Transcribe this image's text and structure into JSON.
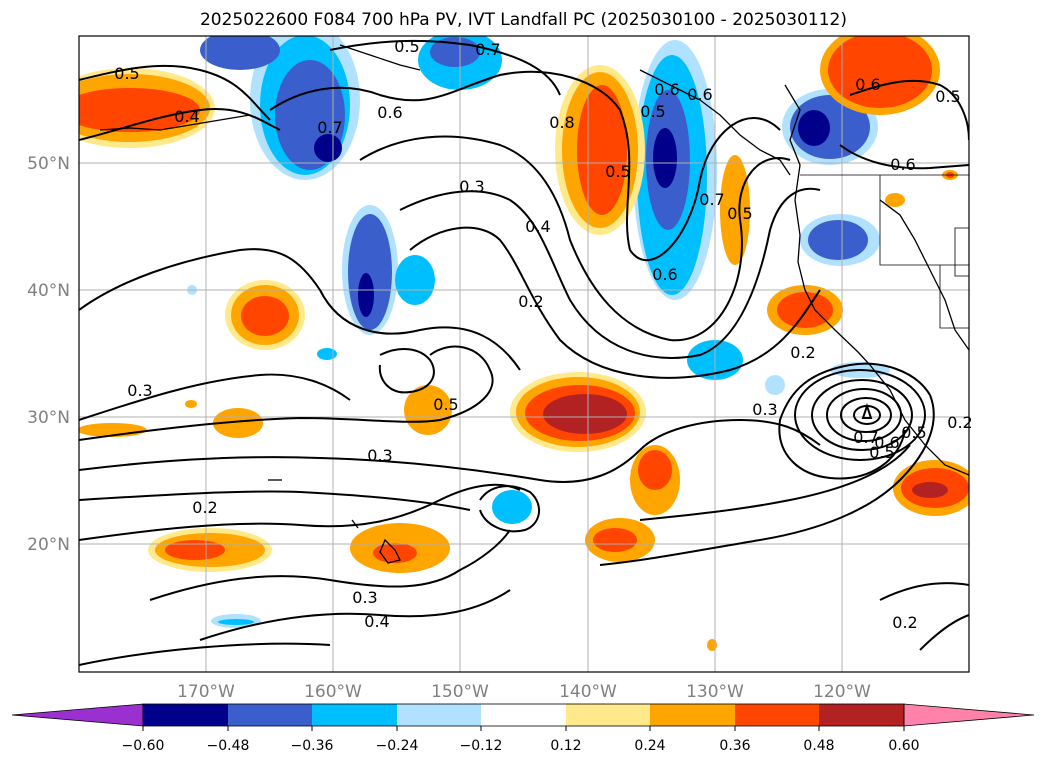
{
  "title": "2025022600 F084 700 hPa PV, IVT Landfall PC (2025030100 - 2025030112)",
  "map": {
    "lon_range": [
      -180,
      -110
    ],
    "lat_range": [
      10,
      60
    ],
    "lat_ticks": [
      "20°N",
      "30°N",
      "40°N",
      "50°N"
    ],
    "lon_ticks": [
      "170°W",
      "160°W",
      "150°W",
      "140°W",
      "130°W",
      "120°W"
    ],
    "grid": true
  },
  "colorbar": {
    "ticks": [
      "−0.60",
      "−0.48",
      "−0.36",
      "−0.24",
      "−0.12",
      "0.12",
      "0.24",
      "0.36",
      "0.48",
      "0.60"
    ],
    "colors": [
      "#9b30d0",
      "#00008b",
      "#3a5fcd",
      "#00bfff",
      "#b0e2ff",
      "#ffffff",
      "#ffe98a",
      "#ffa500",
      "#ff4500",
      "#b22222",
      "#ff82ab"
    ],
    "extend": "both"
  },
  "contour_labels": [
    "0.5",
    "0.4",
    "0.5",
    "0.7",
    "0.7",
    "0.6",
    "0.3",
    "0.4",
    "0.8",
    "0.5",
    "0.5",
    "0.7",
    "0.5",
    "0.6",
    "0.6",
    "0.5",
    "0.2",
    "0.3",
    "0.5",
    "0.3",
    "0.3",
    "0.2",
    "0.2",
    "0.7",
    "0.6",
    "0.5",
    "0.3",
    "0.4",
    "0.2",
    "0.6",
    "0.5",
    "0.6",
    "0.6",
    "0.2"
  ]
}
